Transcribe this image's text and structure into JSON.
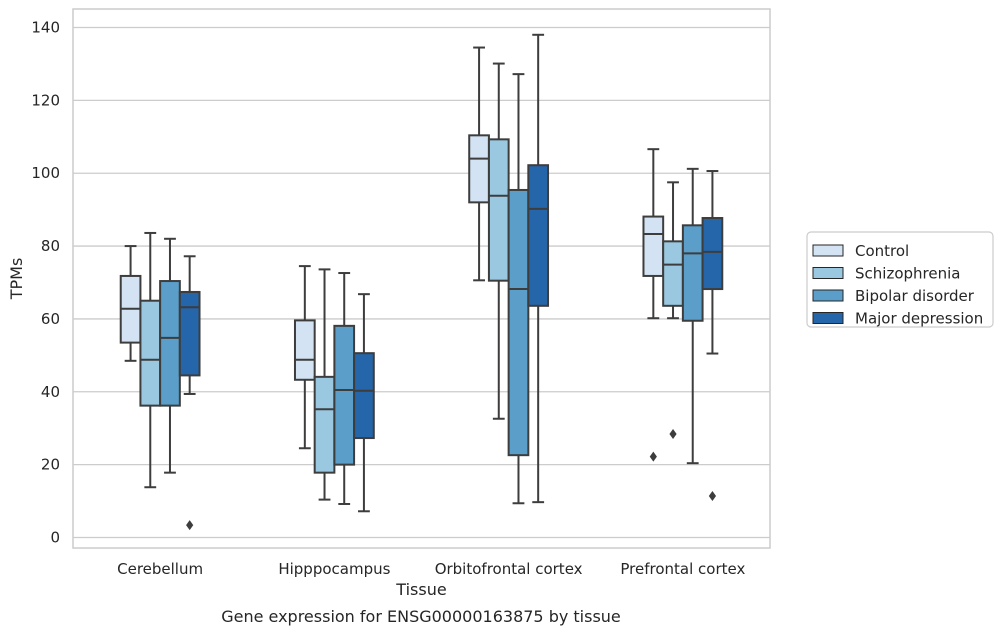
{
  "chart_data": {
    "type": "box",
    "title": "",
    "caption": "Gene expression for ENSG00000163875 by tissue",
    "xlabel": "Tissue",
    "ylabel": "TPMs",
    "ylim": [
      -3,
      145
    ],
    "yticks": [
      0,
      20,
      40,
      60,
      80,
      100,
      120,
      140
    ],
    "grid": "horizontal",
    "legend_position": "right",
    "categories": [
      "Cerebellum",
      "Hipppocampus",
      "Orbitofrontal cortex",
      "Prefrontal cortex"
    ],
    "series": [
      {
        "name": "Control",
        "color": "#d3e3f3",
        "boxes": [
          {
            "whisker_low": 48.5,
            "q1": 53.5,
            "median": 62.8,
            "q3": 71.8,
            "whisker_high": 80.0,
            "outliers": []
          },
          {
            "whisker_low": 24.5,
            "q1": 43.3,
            "median": 48.8,
            "q3": 59.6,
            "whisker_high": 74.5,
            "outliers": []
          },
          {
            "whisker_low": 70.6,
            "q1": 92.0,
            "median": 104.0,
            "q3": 110.4,
            "whisker_high": 134.5,
            "outliers": []
          },
          {
            "whisker_low": 60.2,
            "q1": 71.8,
            "median": 83.3,
            "q3": 88.1,
            "whisker_high": 106.6,
            "outliers": [
              22.2
            ]
          }
        ]
      },
      {
        "name": "Schizophrenia",
        "color": "#9ac8e0",
        "boxes": [
          {
            "whisker_low": 13.8,
            "q1": 36.2,
            "median": 48.8,
            "q3": 65.0,
            "whisker_high": 83.6,
            "outliers": []
          },
          {
            "whisker_low": 10.4,
            "q1": 17.8,
            "median": 35.2,
            "q3": 44.1,
            "whisker_high": 73.6,
            "outliers": []
          },
          {
            "whisker_low": 32.6,
            "q1": 70.5,
            "median": 93.8,
            "q3": 109.3,
            "whisker_high": 130.1,
            "outliers": []
          },
          {
            "whisker_low": 60.2,
            "q1": 63.6,
            "median": 74.9,
            "q3": 81.3,
            "whisker_high": 97.5,
            "outliers": [
              28.4
            ]
          }
        ]
      },
      {
        "name": "Bipolar disorder",
        "color": "#5a9ec9",
        "boxes": [
          {
            "whisker_low": 17.8,
            "q1": 36.2,
            "median": 54.8,
            "q3": 70.4,
            "whisker_high": 82.0,
            "outliers": []
          },
          {
            "whisker_low": 9.2,
            "q1": 20.0,
            "median": 40.5,
            "q3": 58.1,
            "whisker_high": 72.6,
            "outliers": []
          },
          {
            "whisker_low": 9.4,
            "q1": 22.6,
            "median": 68.2,
            "q3": 95.4,
            "whisker_high": 127.2,
            "outliers": []
          },
          {
            "whisker_low": 20.4,
            "q1": 59.5,
            "median": 78.0,
            "q3": 85.7,
            "whisker_high": 101.2,
            "outliers": []
          }
        ]
      },
      {
        "name": "Major depression",
        "color": "#2565a9",
        "boxes": [
          {
            "whisker_low": 39.4,
            "q1": 44.5,
            "median": 63.2,
            "q3": 67.4,
            "whisker_high": 77.2,
            "outliers": [
              3.4
            ]
          },
          {
            "whisker_low": 7.2,
            "q1": 27.3,
            "median": 40.3,
            "q3": 50.6,
            "whisker_high": 66.8,
            "outliers": []
          },
          {
            "whisker_low": 9.7,
            "q1": 63.6,
            "median": 90.2,
            "q3": 102.2,
            "whisker_high": 138.0,
            "outliers": []
          },
          {
            "whisker_low": 50.5,
            "q1": 68.2,
            "median": 78.4,
            "q3": 87.7,
            "whisker_high": 100.6,
            "outliers": [
              11.4
            ]
          }
        ]
      }
    ]
  }
}
